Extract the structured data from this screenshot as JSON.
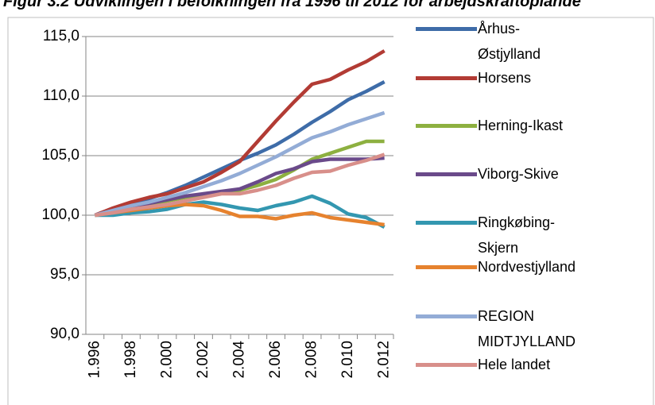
{
  "chart_data": {
    "type": "line",
    "title": "Figur 3.2 Udviklingen i befolkningen fra 1996 til 2012 for arbejdskraftoplande",
    "categories": [
      "1.996",
      null,
      "1.998",
      null,
      "2.000",
      null,
      "2.002",
      null,
      "2.004",
      null,
      "2.006",
      null,
      "2.008",
      null,
      "2.010",
      null,
      "2.012"
    ],
    "ylim": [
      90,
      115
    ],
    "yticks": [
      {
        "value": 90,
        "label": "90,0"
      },
      {
        "value": 95,
        "label": "95,0"
      },
      {
        "value": 100,
        "label": "100,0"
      },
      {
        "value": 105,
        "label": "105,0"
      },
      {
        "value": 110,
        "label": "110,0"
      },
      {
        "value": 115,
        "label": "115,0"
      }
    ],
    "grid": true,
    "legend": "right",
    "series": [
      {
        "name": "Århus-Østjylland",
        "color": "#3e6ca8",
        "values": [
          100,
          100.5,
          101,
          101.4,
          101.9,
          102.5,
          103.2,
          103.9,
          104.6,
          105.2,
          105.9,
          106.8,
          107.8,
          108.7,
          109.7,
          110.4,
          111.2
        ]
      },
      {
        "name": "Horsens",
        "color": "#b23b34",
        "values": [
          100,
          100.6,
          101.1,
          101.5,
          101.8,
          102.3,
          102.8,
          103.6,
          104.5,
          106.2,
          107.9,
          109.5,
          111.0,
          111.4,
          112.2,
          112.9,
          113.8
        ]
      },
      {
        "name": "Herning-Ikast",
        "color": "#8db040",
        "values": [
          100,
          100.3,
          100.6,
          100.9,
          101.2,
          101.5,
          101.7,
          101.9,
          102.1,
          102.5,
          103.0,
          103.8,
          104.7,
          105.2,
          105.7,
          106.2,
          106.2
        ]
      },
      {
        "name": "Viborg-Skive",
        "color": "#6a4a8a",
        "values": [
          100,
          100.4,
          100.7,
          101.0,
          101.3,
          101.6,
          101.8,
          102.0,
          102.2,
          102.8,
          103.5,
          103.9,
          104.5,
          104.7,
          104.7,
          104.7,
          104.8
        ]
      },
      {
        "name": "Ringkøbing-Skjern",
        "color": "#3397b0",
        "values": [
          100,
          100,
          100.2,
          100.3,
          100.5,
          100.9,
          101.1,
          100.9,
          100.6,
          100.4,
          100.8,
          101.1,
          101.6,
          101.0,
          100.1,
          99.8,
          99.0
        ]
      },
      {
        "name": "Nordvestjylland",
        "color": "#e6822e",
        "values": [
          100,
          100.2,
          100.4,
          100.6,
          100.8,
          100.9,
          100.8,
          100.4,
          99.9,
          99.9,
          99.7,
          100.0,
          100.2,
          99.8,
          99.6,
          99.4,
          99.2
        ]
      },
      {
        "name": "REGION MIDTJYLLAND",
        "color": "#93acd6",
        "values": [
          100,
          100.4,
          100.8,
          101.1,
          101.5,
          101.9,
          102.4,
          102.9,
          103.5,
          104.2,
          104.9,
          105.7,
          106.5,
          107.0,
          107.6,
          108.1,
          108.6
        ]
      },
      {
        "name": "Hele landet",
        "color": "#d88f8a",
        "values": [
          100,
          100.2,
          100.5,
          100.7,
          100.9,
          101.2,
          101.5,
          101.8,
          101.8,
          102.1,
          102.5,
          103.1,
          103.6,
          103.7,
          104.2,
          104.6,
          105.1
        ]
      }
    ]
  }
}
